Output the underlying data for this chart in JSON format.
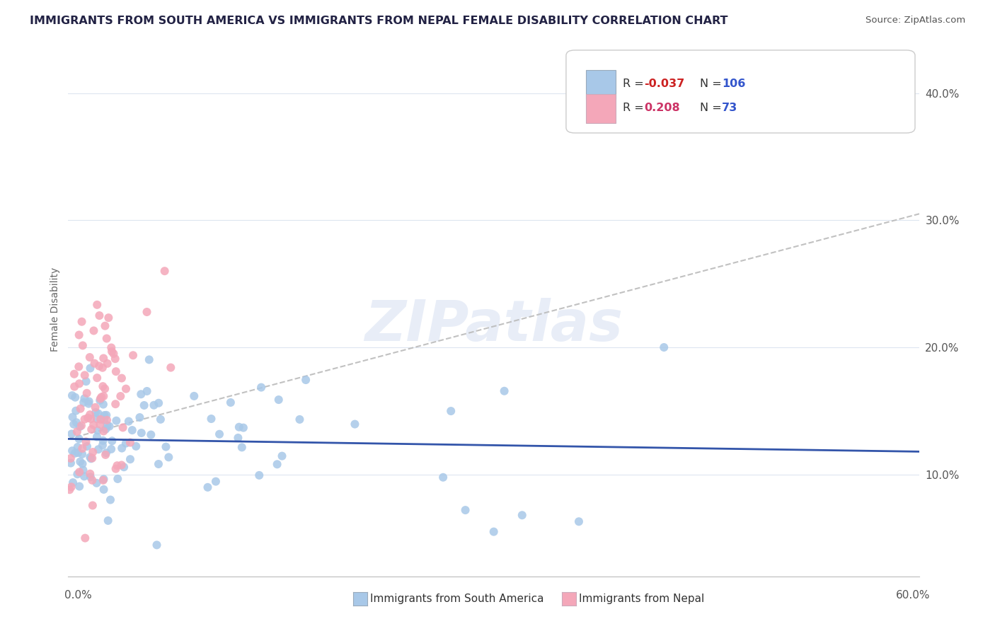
{
  "title": "IMMIGRANTS FROM SOUTH AMERICA VS IMMIGRANTS FROM NEPAL FEMALE DISABILITY CORRELATION CHART",
  "source": "Source: ZipAtlas.com",
  "ylabel": "Female Disability",
  "legend_label_blue": "Immigrants from South America",
  "legend_label_pink": "Immigrants from Nepal",
  "R_blue": -0.037,
  "N_blue": 106,
  "R_pink": 0.208,
  "N_pink": 73,
  "watermark": "ZIPatlas",
  "blue_dot_color": "#a8c8e8",
  "blue_line_color": "#3355aa",
  "pink_dot_color": "#f4a7b9",
  "pink_line_color": "#cc3366",
  "trend_line_color": "#bbbbbb",
  "xlim": [
    0.0,
    0.6
  ],
  "ylim": [
    0.02,
    0.44
  ],
  "yticks": [
    0.1,
    0.2,
    0.3,
    0.4
  ],
  "ytick_labels": [
    "10.0%",
    "20.0%",
    "30.0%",
    "40.0%"
  ],
  "background_color": "#ffffff",
  "grid_color": "#dde5f0",
  "R_blue_color": "#cc2222",
  "R_pink_color": "#cc3366",
  "N_color": "#3355cc"
}
